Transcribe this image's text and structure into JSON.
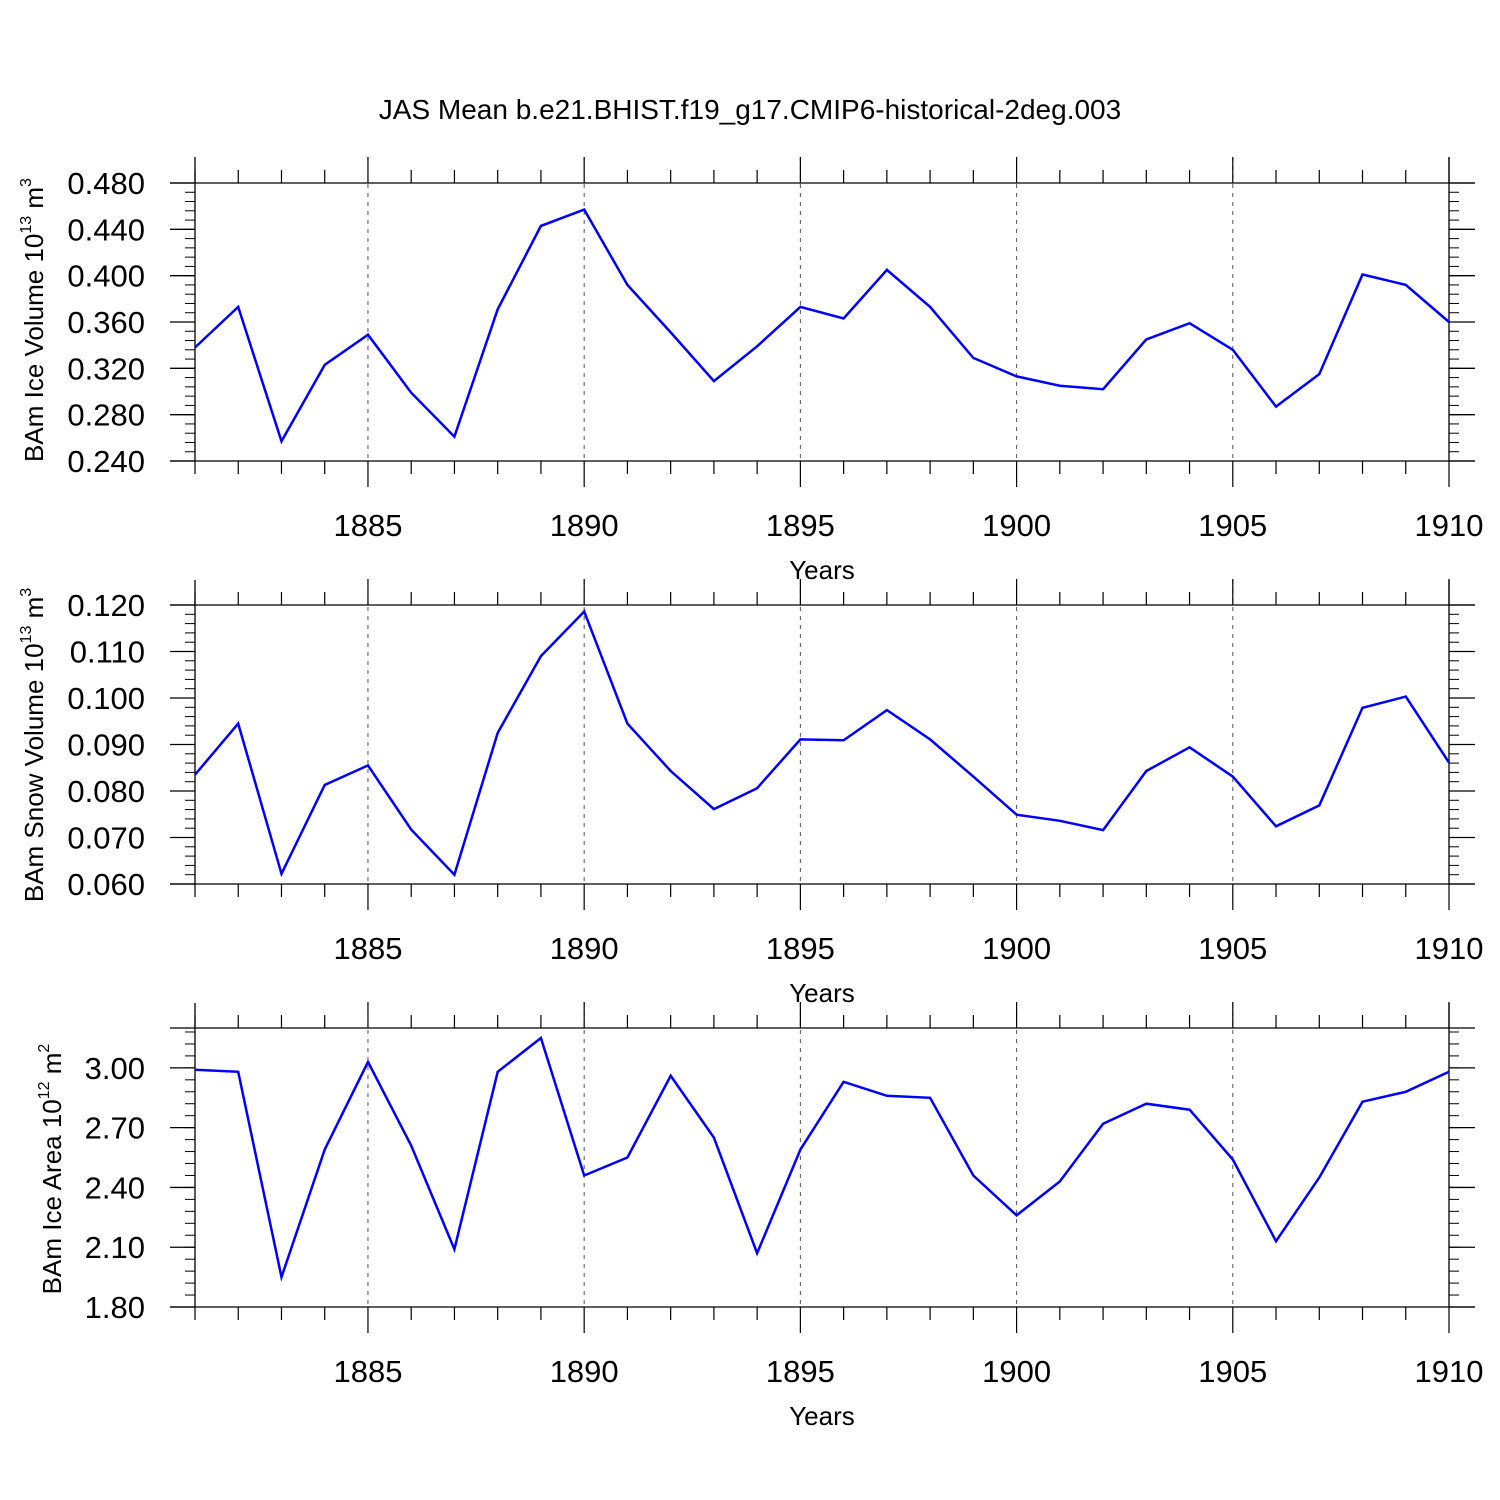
{
  "figure": {
    "title": "JAS Mean b.e21.BHIST.f19_g17.CMIP6-historical-2deg.003",
    "line_color": "#0000ff"
  },
  "chart_data": [
    {
      "type": "line",
      "xlabel": "Years",
      "ylabel": {
        "text": "BAm Ice Volume 10",
        "exp": "13",
        "unit": " m",
        "unit_exp": "3"
      },
      "xlim": [
        1881,
        1910
      ],
      "ylim": [
        0.24,
        0.48
      ],
      "xticks": [
        "1885",
        "1890",
        "1895",
        "1900",
        "1905",
        "1910"
      ],
      "yticks": [
        "0.240",
        "0.280",
        "0.320",
        "0.360",
        "0.400",
        "0.440",
        "0.480"
      ],
      "x": [
        1881,
        1882,
        1883,
        1884,
        1885,
        1886,
        1887,
        1888,
        1889,
        1890,
        1891,
        1892,
        1893,
        1894,
        1895,
        1896,
        1897,
        1898,
        1899,
        1900,
        1901,
        1902,
        1903,
        1904,
        1905,
        1906,
        1907,
        1908,
        1909,
        1910
      ],
      "series": [
        {
          "values": [
            0.338,
            0.373,
            0.257,
            0.323,
            0.349,
            0.299,
            0.261,
            0.371,
            0.443,
            0.457,
            0.392,
            0.351,
            0.309,
            0.339,
            0.373,
            0.363,
            0.405,
            0.373,
            0.329,
            0.313,
            0.305,
            0.302,
            0.345,
            0.359,
            0.336,
            0.287,
            0.315,
            0.401,
            0.392,
            0.36
          ]
        }
      ],
      "grid": "dashed vertical at major x ticks"
    },
    {
      "type": "line",
      "xlabel": "Years",
      "ylabel": {
        "text": "BAm Snow Volume 10",
        "exp": "13",
        "unit": " m",
        "unit_exp": "3"
      },
      "xlim": [
        1881,
        1910
      ],
      "ylim": [
        0.06,
        0.12
      ],
      "xticks": [
        "1885",
        "1890",
        "1895",
        "1900",
        "1905",
        "1910"
      ],
      "yticks": [
        "0.060",
        "0.070",
        "0.080",
        "0.090",
        "0.100",
        "0.110",
        "0.120"
      ],
      "x": [
        1881,
        1882,
        1883,
        1884,
        1885,
        1886,
        1887,
        1888,
        1889,
        1890,
        1891,
        1892,
        1893,
        1894,
        1895,
        1896,
        1897,
        1898,
        1899,
        1900,
        1901,
        1902,
        1903,
        1904,
        1905,
        1906,
        1907,
        1908,
        1909,
        1910
      ],
      "series": [
        {
          "values": [
            0.0835,
            0.0945,
            0.0622,
            0.0813,
            0.0855,
            0.0717,
            0.062,
            0.0925,
            0.109,
            0.1186,
            0.0945,
            0.0843,
            0.0761,
            0.0806,
            0.0911,
            0.0909,
            0.0974,
            0.0911,
            0.0831,
            0.0749,
            0.0736,
            0.0716,
            0.0843,
            0.0894,
            0.0831,
            0.0724,
            0.0769,
            0.0979,
            0.1003,
            0.0861
          ]
        }
      ],
      "grid": "dashed vertical at major x ticks"
    },
    {
      "type": "line",
      "xlabel": "Years",
      "ylabel": {
        "text": "BAm Ice Area 10",
        "exp": "12",
        "unit": " m",
        "unit_exp": "2"
      },
      "xlim": [
        1881,
        1910
      ],
      "ylim": [
        1.8,
        3.2
      ],
      "xticks": [
        "1885",
        "1890",
        "1895",
        "1900",
        "1905",
        "1910"
      ],
      "yticks": [
        "1.80",
        "2.10",
        "2.40",
        "2.70",
        "3.00"
      ],
      "x": [
        1881,
        1882,
        1883,
        1884,
        1885,
        1886,
        1887,
        1888,
        1889,
        1890,
        1891,
        1892,
        1893,
        1894,
        1895,
        1896,
        1897,
        1898,
        1899,
        1900,
        1901,
        1902,
        1903,
        1904,
        1905,
        1906,
        1907,
        1908,
        1909,
        1910
      ],
      "series": [
        {
          "values": [
            2.99,
            2.98,
            1.95,
            2.59,
            3.03,
            2.61,
            2.09,
            2.98,
            3.15,
            2.46,
            2.55,
            2.96,
            2.65,
            2.07,
            2.59,
            2.93,
            2.86,
            2.85,
            2.46,
            2.26,
            2.43,
            2.72,
            2.82,
            2.79,
            2.54,
            2.13,
            2.45,
            2.83,
            2.88,
            2.98
          ]
        }
      ],
      "grid": "dashed vertical at major x ticks"
    }
  ]
}
